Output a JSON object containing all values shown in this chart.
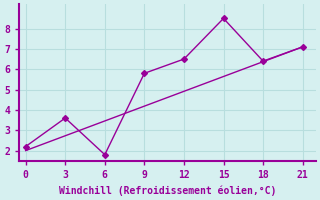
{
  "xlabel": "Windchill (Refroidissement éolien,°C)",
  "scatter_x": [
    0,
    3,
    6,
    9,
    12,
    15,
    18,
    21
  ],
  "scatter_y": [
    2.2,
    3.6,
    1.8,
    5.8,
    6.5,
    8.5,
    6.4,
    7.1
  ],
  "trend_x": [
    0,
    21
  ],
  "trend_y": [
    2.0,
    7.1
  ],
  "line_color": "#990099",
  "marker_color": "#990099",
  "bg_color": "#d6f0f0",
  "grid_color": "#b8dede",
  "spine_color": "#990099",
  "xlim": [
    -0.5,
    22
  ],
  "ylim": [
    1.5,
    9.2
  ],
  "xticks": [
    0,
    3,
    6,
    9,
    12,
    15,
    18,
    21
  ],
  "yticks": [
    2,
    3,
    4,
    5,
    6,
    7,
    8
  ],
  "tick_color": "#990099",
  "label_color": "#990099",
  "figsize": [
    3.2,
    2.0
  ],
  "dpi": 100
}
